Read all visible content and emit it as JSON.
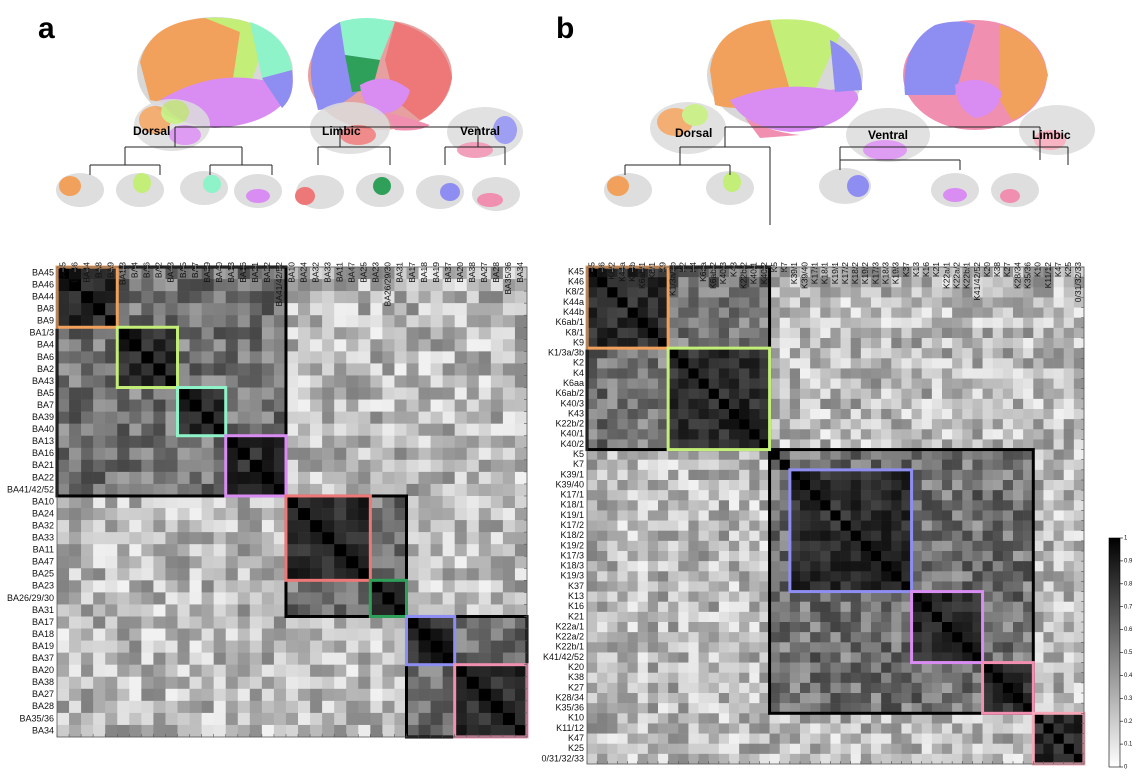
{
  "panels": [
    {
      "letter": "a",
      "groups": [
        "Dorsal",
        "Limbic",
        "Ventral"
      ],
      "labels": [
        "BA45",
        "BA46",
        "BA44",
        "BA8",
        "BA9",
        "BA1/3",
        "BA4",
        "BA6",
        "BA2",
        "BA43",
        "BA5",
        "BA7",
        "BA39",
        "BA40",
        "BA13",
        "BA16",
        "BA21",
        "BA22",
        "BA41/42/52",
        "BA10",
        "BA24",
        "BA32",
        "BA33",
        "BA11",
        "BA47",
        "BA25",
        "BA23",
        "BA26/29/30",
        "BA31",
        "BA17",
        "BA18",
        "BA19",
        "BA37",
        "BA20",
        "BA38",
        "BA27",
        "BA28",
        "BA35/36",
        "BA34"
      ],
      "clusters": [
        {
          "start": 0,
          "end": 4,
          "color": "#F2A15C"
        },
        {
          "start": 5,
          "end": 9,
          "color": "#C3EE77"
        },
        {
          "start": 10,
          "end": 13,
          "color": "#8EF3C9"
        },
        {
          "start": 14,
          "end": 18,
          "color": "#D98CF2"
        },
        {
          "start": 19,
          "end": 25,
          "color": "#EE7777"
        },
        {
          "start": 26,
          "end": 28,
          "color": "#2EA05A"
        },
        {
          "start": 29,
          "end": 32,
          "color": "#8E8EF2"
        },
        {
          "start": 33,
          "end": 38,
          "color": "#F08FB0"
        }
      ],
      "superclusters": [
        {
          "start": 0,
          "end": 18
        },
        {
          "start": 19,
          "end": 28
        },
        {
          "start": 29,
          "end": 38
        }
      ]
    },
    {
      "letter": "b",
      "groups": [
        "Dorsal",
        "Ventral",
        "Limbic"
      ],
      "labels": [
        "K45",
        "K46",
        "K8/2",
        "K44a",
        "K44b",
        "K6ab/1",
        "K8/1",
        "K9",
        "K1/3a/3b",
        "K2",
        "K4",
        "K6aa",
        "K6ab/2",
        "K40/3",
        "K43",
        "K22b/2",
        "K40/1",
        "K40/2",
        "K5",
        "K7",
        "K39/1",
        "K39/40",
        "K17/1",
        "K18/1",
        "K19/1",
        "K17/2",
        "K18/2",
        "K19/2",
        "K17/3",
        "K18/3",
        "K19/3",
        "K37",
        "K13",
        "K16",
        "K21",
        "K22a/1",
        "K22a/2",
        "K22b/1",
        "K41/42/52",
        "K20",
        "K38",
        "K27",
        "K28/34",
        "K35/36",
        "K10",
        "K11/12",
        "K47",
        "K25",
        "0/31/32/33"
      ],
      "clusters": [
        {
          "start": 0,
          "end": 7,
          "color": "#F2A15C"
        },
        {
          "start": 8,
          "end": 17,
          "color": "#C3EE77"
        },
        {
          "start": 20,
          "end": 31,
          "color": "#8E8EF2"
        },
        {
          "start": 32,
          "end": 38,
          "color": "#D98CF2"
        },
        {
          "start": 39,
          "end": 43,
          "color": "#F08FB0"
        },
        {
          "start": 44,
          "end": 48,
          "color": "#F7A8B8"
        }
      ],
      "superclusters": [
        {
          "start": 0,
          "end": 17
        },
        {
          "start": 18,
          "end": 43
        }
      ]
    }
  ],
  "colorbar": {
    "ticks": [
      "1",
      "0.9",
      "0.8",
      "0.7",
      "0.6",
      "0.5",
      "0.4",
      "0.3",
      "0.2",
      "0.1",
      "0"
    ]
  }
}
